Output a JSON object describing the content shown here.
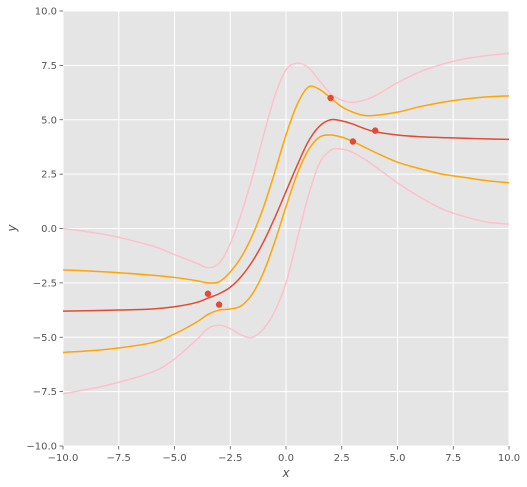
{
  "chart_data": {
    "type": "line",
    "title": "",
    "xlabel": "x",
    "ylabel": "y",
    "xlim": [
      -10,
      10
    ],
    "ylim": [
      -10,
      10
    ],
    "grid": true,
    "xticks": [
      -10,
      -7.5,
      -5,
      -2.5,
      0,
      2.5,
      5,
      7.5,
      10
    ],
    "yticks": [
      -10,
      -7.5,
      -5,
      -2.5,
      0,
      2.5,
      5,
      7.5,
      10
    ],
    "xtick_labels": [
      "−10.0",
      "−7.5",
      "−5.0",
      "−2.5",
      "0.0",
      "2.5",
      "5.0",
      "7.5",
      "10.0"
    ],
    "ytick_labels": [
      "−10.0",
      "−7.5",
      "−5.0",
      "−2.5",
      "0.0",
      "2.5",
      "5.0",
      "7.5",
      "10.0"
    ],
    "colors": {
      "background": "#E5E5E5",
      "grid": "#FFFFFF",
      "mean": "#E24A33",
      "band1": "#FFA500",
      "band2": "#FFC0CB",
      "points": "#E24A33"
    },
    "series": [
      {
        "role": "mean",
        "x": [
          -10,
          -7.5,
          -6,
          -5,
          -4,
          -3.5,
          -3,
          -2.5,
          -2,
          -1.5,
          -1,
          -0.5,
          0,
          0.5,
          1,
          1.5,
          2,
          2.5,
          3,
          3.5,
          4,
          5,
          6,
          7,
          8,
          9,
          10
        ],
        "y": [
          -3.8,
          -3.75,
          -3.7,
          -3.6,
          -3.4,
          -3.2,
          -3.0,
          -2.7,
          -2.2,
          -1.5,
          -0.6,
          0.5,
          1.7,
          2.9,
          4.0,
          4.7,
          5.0,
          4.95,
          4.8,
          4.6,
          4.45,
          4.3,
          4.22,
          4.18,
          4.15,
          4.12,
          4.1
        ]
      },
      {
        "role": "band1-upper",
        "x": [
          -10,
          -8,
          -6,
          -5,
          -4,
          -3.5,
          -3,
          -2.5,
          -2,
          -1.5,
          -1,
          -0.5,
          0,
          0.5,
          1,
          1.5,
          2,
          2.5,
          3,
          3.5,
          4,
          5,
          6,
          7,
          8,
          9,
          10
        ],
        "y": [
          -1.9,
          -2.0,
          -2.15,
          -2.25,
          -2.4,
          -2.5,
          -2.45,
          -2.0,
          -1.3,
          -0.3,
          1.0,
          2.6,
          4.3,
          5.7,
          6.5,
          6.4,
          6.0,
          5.6,
          5.35,
          5.2,
          5.2,
          5.35,
          5.6,
          5.8,
          5.95,
          6.05,
          6.1
        ]
      },
      {
        "role": "band1-lower",
        "x": [
          -10,
          -8,
          -6,
          -5,
          -4,
          -3.5,
          -3,
          -2.5,
          -2,
          -1.5,
          -1,
          -0.5,
          0,
          0.5,
          1,
          1.5,
          2,
          2.5,
          3,
          3.5,
          4,
          5,
          6,
          7,
          8,
          9,
          10
        ],
        "y": [
          -5.7,
          -5.55,
          -5.25,
          -4.85,
          -4.3,
          -3.95,
          -3.75,
          -3.7,
          -3.55,
          -3.0,
          -2.0,
          -0.6,
          1.0,
          2.5,
          3.6,
          4.2,
          4.3,
          4.2,
          4.0,
          3.75,
          3.5,
          3.05,
          2.75,
          2.5,
          2.35,
          2.2,
          2.1
        ]
      },
      {
        "role": "band2-upper",
        "x": [
          -10,
          -8,
          -6,
          -5,
          -4,
          -3.5,
          -3,
          -2.5,
          -2,
          -1.5,
          -1,
          -0.5,
          0,
          0.5,
          1,
          1.5,
          2,
          2.5,
          3,
          3.5,
          4,
          5,
          6,
          7,
          8,
          9,
          10
        ],
        "y": [
          0.0,
          -0.3,
          -0.8,
          -1.2,
          -1.6,
          -1.8,
          -1.6,
          -0.7,
          0.7,
          2.4,
          4.3,
          6.1,
          7.3,
          7.6,
          7.4,
          6.8,
          6.2,
          5.9,
          5.8,
          5.9,
          6.1,
          6.7,
          7.2,
          7.55,
          7.8,
          7.95,
          8.05
        ]
      },
      {
        "role": "band2-lower",
        "x": [
          -10,
          -8,
          -6,
          -5,
          -4,
          -3.5,
          -3,
          -2.5,
          -2,
          -1.5,
          -1,
          -0.5,
          0,
          0.5,
          1,
          1.5,
          2,
          2.5,
          3,
          3.5,
          4,
          5,
          6,
          7,
          8,
          9,
          10
        ],
        "y": [
          -7.6,
          -7.2,
          -6.6,
          -6.0,
          -5.1,
          -4.6,
          -4.45,
          -4.6,
          -4.9,
          -5.0,
          -4.6,
          -3.8,
          -2.5,
          -0.5,
          1.5,
          3.0,
          3.6,
          3.65,
          3.5,
          3.2,
          2.85,
          2.1,
          1.45,
          0.9,
          0.55,
          0.3,
          0.2
        ]
      }
    ],
    "points": [
      {
        "x": -3.5,
        "y": -3.0
      },
      {
        "x": -3.0,
        "y": -3.5
      },
      {
        "x": 2.0,
        "y": 6.0
      },
      {
        "x": 3.0,
        "y": 4.0
      },
      {
        "x": 4.0,
        "y": 4.5
      }
    ]
  }
}
